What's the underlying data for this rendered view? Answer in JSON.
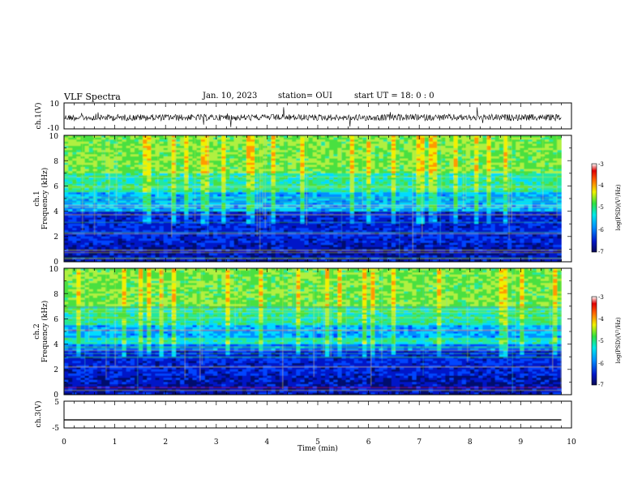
{
  "header": {
    "title": "VLF Spectra",
    "date": "Jan. 10, 2023",
    "station": "station= OUI",
    "start": "start  UT =  18: 0  : 0"
  },
  "chart_data": [
    {
      "type": "line",
      "panel": "ch1-waveform",
      "ylabel": "ch.1(V)",
      "ylim": [
        -10,
        10
      ],
      "yticks": [
        "10",
        "-10"
      ],
      "xlim": [
        0,
        10
      ],
      "note": "noisy broadband waveform centered slightly below 0 V with amplitude about ±2 V and occasional spikes"
    },
    {
      "type": "heatmap",
      "panel": "ch1-spectrogram",
      "ylabel": "ch.1\nFrequency (kHz)",
      "ylim": [
        0,
        10
      ],
      "yticks": [
        0,
        2,
        4,
        6,
        8,
        10
      ],
      "xlim": [
        0,
        10
      ],
      "data_end_min": 9.8,
      "colorbar": {
        "label": "log(PSD)(V²/Hz)",
        "range": [
          -7,
          -3
        ],
        "ticks": [
          "-3",
          "-4",
          "-5",
          "-6",
          "-7"
        ]
      }
    },
    {
      "type": "heatmap",
      "panel": "ch2-spectrogram",
      "ylabel": "ch.2\nFrequency (kHz)",
      "ylim": [
        0,
        10
      ],
      "yticks": [
        0,
        2,
        4,
        6,
        8,
        10
      ],
      "xlim": [
        0,
        10
      ],
      "data_end_min": 9.8,
      "colorbar": {
        "label": "log(PSD)(V²/Hz)",
        "range": [
          -7,
          -3
        ],
        "ticks": [
          "-3",
          "-4",
          "-5",
          "-6",
          "-7"
        ]
      }
    },
    {
      "type": "line",
      "panel": "ch3-waveform",
      "ylabel": "ch.3(V)",
      "ylim": [
        -5,
        5
      ],
      "yticks": [
        "5",
        "-5"
      ],
      "xlim": [
        0,
        10
      ],
      "xlabel": "Time (min)",
      "xticks": [
        0,
        1,
        2,
        3,
        4,
        5,
        6,
        7,
        8,
        9,
        10
      ],
      "constant_value": -2
    }
  ],
  "colors": {
    "axis": "#000000",
    "background": "#ffffff",
    "colormap": [
      "#000a6e",
      "#0018c8",
      "#0044ff",
      "#0090ff",
      "#00dcff",
      "#20e8a0",
      "#4ae040",
      "#b0f040",
      "#f0f000",
      "#ff9a00",
      "#e00000",
      "#ffffff"
    ]
  }
}
